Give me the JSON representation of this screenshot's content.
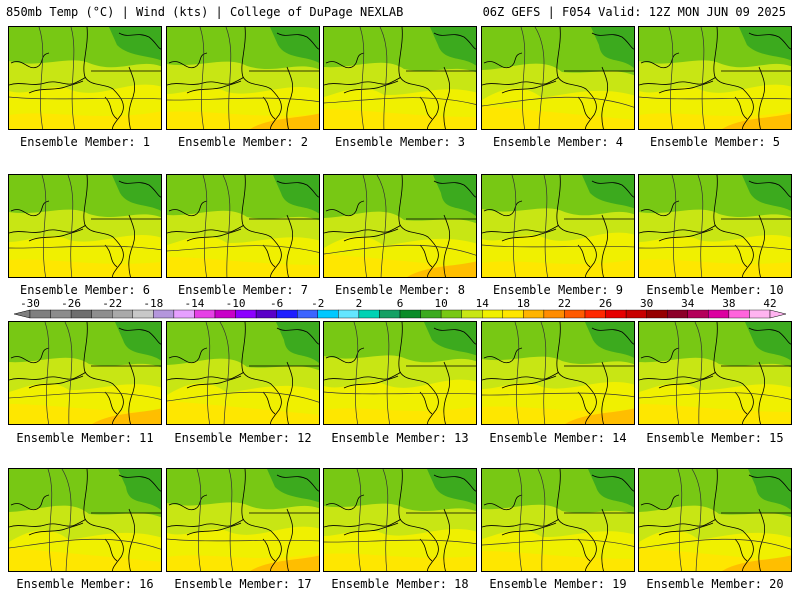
{
  "header": {
    "left_title": "850mb Temp (°C) | Wind (kts) | College of DuPage NEXLAB",
    "right_title": "06Z GEFS | F054 Valid: 12Z MON JUN 09 2025"
  },
  "panels": [
    {
      "label": "Ensemble Member: 1"
    },
    {
      "label": "Ensemble Member: 2"
    },
    {
      "label": "Ensemble Member: 3"
    },
    {
      "label": "Ensemble Member: 4"
    },
    {
      "label": "Ensemble Member: 5"
    },
    {
      "label": "Ensemble Member: 6"
    },
    {
      "label": "Ensemble Member: 7"
    },
    {
      "label": "Ensemble Member: 8"
    },
    {
      "label": "Ensemble Member: 9"
    },
    {
      "label": "Ensemble Member: 10"
    },
    {
      "label": "Ensemble Member: 11"
    },
    {
      "label": "Ensemble Member: 12"
    },
    {
      "label": "Ensemble Member: 13"
    },
    {
      "label": "Ensemble Member: 14"
    },
    {
      "label": "Ensemble Member: 15"
    },
    {
      "label": "Ensemble Member: 16"
    },
    {
      "label": "Ensemble Member: 17"
    },
    {
      "label": "Ensemble Member: 18"
    },
    {
      "label": "Ensemble Member: 19"
    },
    {
      "label": "Ensemble Member: 20"
    }
  ],
  "colorbar": {
    "tick_labels": [
      "-30",
      "-26",
      "-22",
      "-18",
      "-14",
      "-10",
      "-6",
      "-2",
      "2",
      "6",
      "10",
      "14",
      "18",
      "22",
      "26",
      "30",
      "34",
      "38",
      "42"
    ],
    "colors": [
      "#7f7f7f",
      "#8c8c8c",
      "#6e6e6e",
      "#8e8e8e",
      "#a9a9a9",
      "#c8c8c8",
      "#b496dc",
      "#e6a0ff",
      "#e640e6",
      "#c800c8",
      "#8c00ff",
      "#5a00c8",
      "#1e1eff",
      "#3c64ff",
      "#00c8ff",
      "#64e6ff",
      "#00d2b4",
      "#14a064",
      "#0a8c28",
      "#3caa1e",
      "#78c814",
      "#c8e614",
      "#f0f000",
      "#ffe600",
      "#ffb400",
      "#ff8c00",
      "#ff5a00",
      "#ff2800",
      "#e60000",
      "#c80000",
      "#960000",
      "#8c0028",
      "#b4005a",
      "#dc00a0",
      "#ff64dc",
      "#ffb4f0"
    ]
  }
}
